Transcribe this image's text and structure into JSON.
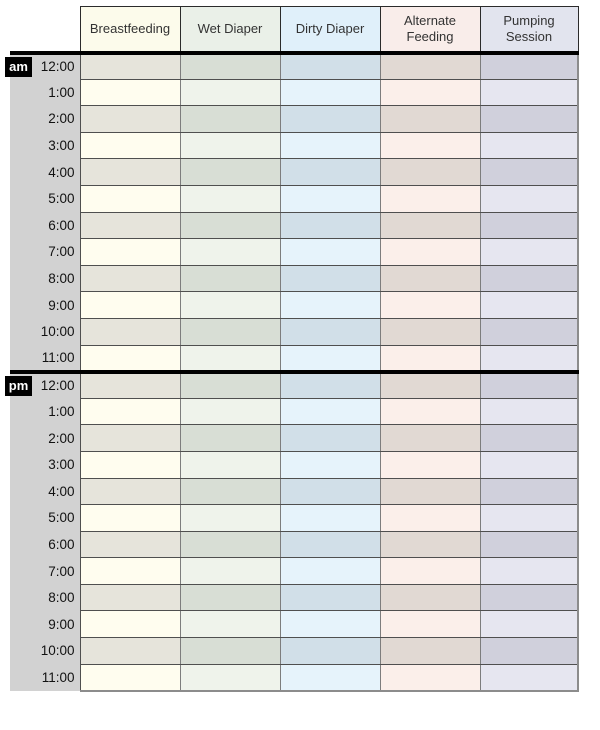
{
  "table": {
    "columns": [
      {
        "label": "Breastfeeding",
        "header_bg": "#FCFBEB",
        "row_light": "#FFFDEF",
        "row_dark": "#E6E4DB"
      },
      {
        "label": "Wet Diaper",
        "header_bg": "#EAF0E8",
        "row_light": "#EFF3EB",
        "row_dark": "#D8DED5"
      },
      {
        "label": "Dirty Diaper",
        "header_bg": "#E0F0FA",
        "row_light": "#E6F3FB",
        "row_dark": "#D1DFE8"
      },
      {
        "label": "Alternate Feeding",
        "header_bg": "#F9EDEA",
        "row_light": "#FBEFEA",
        "row_dark": "#E1D9D3"
      },
      {
        "label": "Pumping Session",
        "header_bg": "#E2E4EE",
        "row_light": "#E6E6F0",
        "row_dark": "#D0D0DC"
      }
    ],
    "sections": [
      {
        "meridiem": "am",
        "times": [
          "12:00",
          "1:00",
          "2:00",
          "3:00",
          "4:00",
          "5:00",
          "6:00",
          "7:00",
          "8:00",
          "9:00",
          "10:00",
          "11:00"
        ]
      },
      {
        "meridiem": "pm",
        "times": [
          "12:00",
          "1:00",
          "2:00",
          "3:00",
          "4:00",
          "5:00",
          "6:00",
          "7:00",
          "8:00",
          "9:00",
          "10:00",
          "11:00"
        ]
      }
    ],
    "colors": {
      "time_column_bg": "#D2D2D2",
      "meridiem_badge_bg": "#000000",
      "meridiem_badge_text": "#FFFFFF",
      "header_border": "#2B2B2B",
      "row_border": "#4F4F4F",
      "column_border": "#7D7D7D",
      "outer_border": "#8C8C8C",
      "section_divider": "#000000",
      "header_text": "#333333",
      "time_text": "#111111"
    }
  }
}
